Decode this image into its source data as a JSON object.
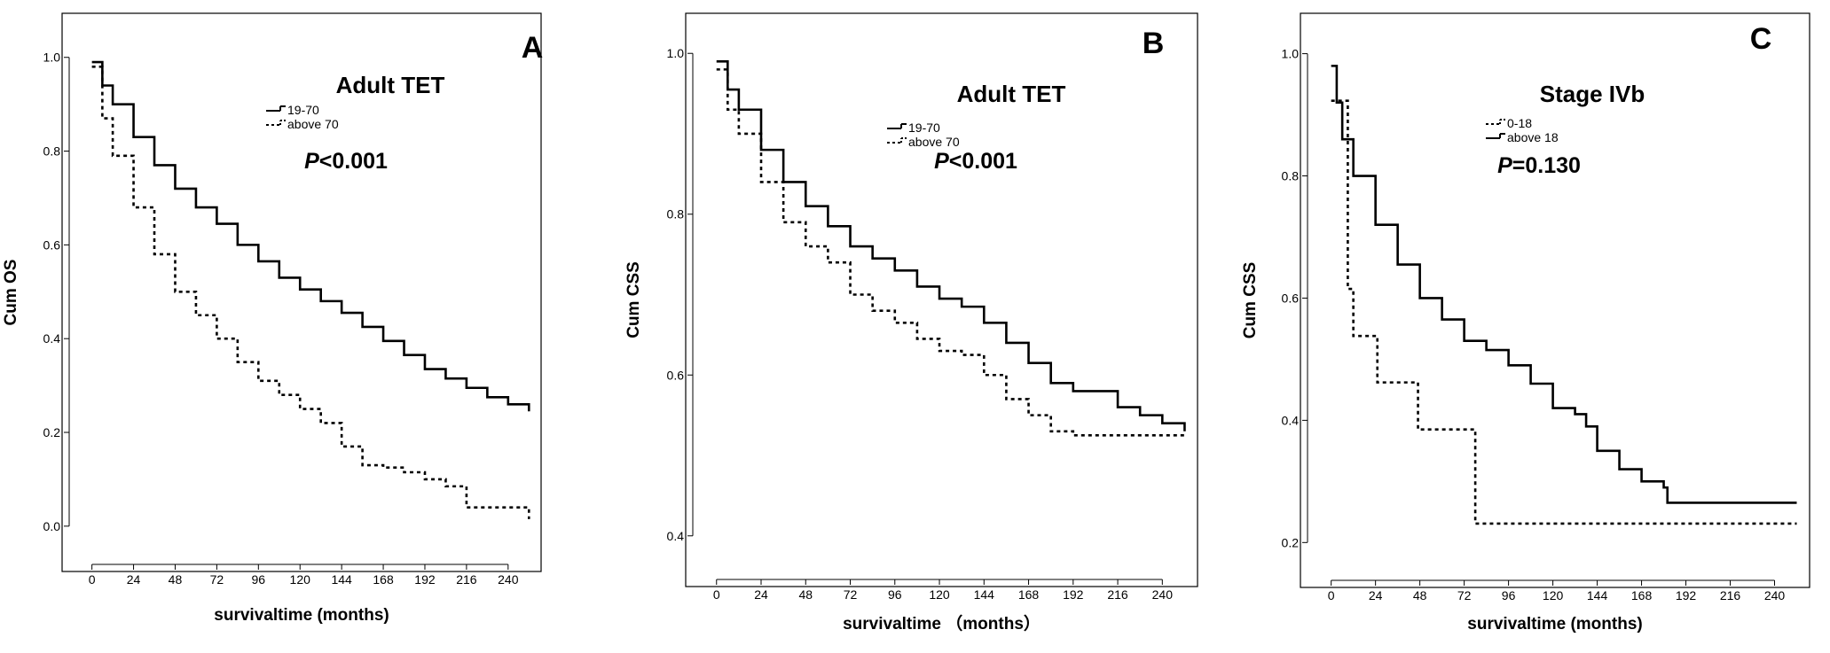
{
  "chart_data": [
    {
      "type": "line",
      "panel_letter": "A",
      "cohort_label": "Adult TET",
      "p_italic": "P",
      "p_rest": "<0.001",
      "xlabel": "survivaltime (months)",
      "ylabel": "Cum OS",
      "xlim": [
        -8,
        258
      ],
      "ylim": [
        -0.04,
        1.06
      ],
      "xticks": [
        0,
        24,
        48,
        72,
        96,
        120,
        144,
        168,
        192,
        216,
        240
      ],
      "yticks": [
        0.0,
        0.2,
        0.4,
        0.6,
        0.8,
        1.0
      ],
      "ytick_labels": [
        "0.0",
        "0.2",
        "0.4",
        "0.6",
        "0.8",
        "1.0"
      ],
      "legend_position": "upper-middle",
      "series": [
        {
          "name": "19-70",
          "dashed": false,
          "x": [
            0,
            6,
            12,
            24,
            36,
            48,
            60,
            72,
            84,
            96,
            108,
            120,
            132,
            144,
            156,
            168,
            180,
            192,
            204,
            216,
            228,
            240,
            252
          ],
          "y": [
            0.99,
            0.94,
            0.9,
            0.83,
            0.77,
            0.72,
            0.68,
            0.645,
            0.6,
            0.565,
            0.53,
            0.505,
            0.48,
            0.455,
            0.425,
            0.395,
            0.365,
            0.335,
            0.315,
            0.295,
            0.275,
            0.26,
            0.245
          ]
        },
        {
          "name": "above 70",
          "dashed": true,
          "x": [
            0,
            6,
            12,
            24,
            36,
            48,
            60,
            72,
            84,
            96,
            108,
            120,
            132,
            144,
            156,
            168,
            180,
            192,
            204,
            216,
            228,
            240,
            252
          ],
          "y": [
            0.98,
            0.87,
            0.79,
            0.68,
            0.58,
            0.5,
            0.45,
            0.4,
            0.35,
            0.31,
            0.28,
            0.25,
            0.22,
            0.17,
            0.13,
            0.125,
            0.115,
            0.1,
            0.085,
            0.04,
            0.04,
            0.04,
            0.015
          ]
        }
      ]
    },
    {
      "type": "line",
      "panel_letter": "B",
      "cohort_label": "Adult TET",
      "p_italic": "P",
      "p_rest": "<0.001",
      "xlabel": "survivaltime （months）",
      "ylabel": "Cum CSS",
      "xlim": [
        -8,
        258
      ],
      "ylim": [
        0.37,
        1.03
      ],
      "xticks": [
        0,
        24,
        48,
        72,
        96,
        120,
        144,
        168,
        192,
        216,
        240
      ],
      "yticks": [
        0.4,
        0.6,
        0.8,
        1.0
      ],
      "ytick_labels": [
        "0.4",
        "0.6",
        "0.8",
        "1.0"
      ],
      "legend_position": "upper-middle",
      "series": [
        {
          "name": "19-70",
          "dashed": false,
          "x": [
            0,
            6,
            12,
            24,
            36,
            48,
            60,
            72,
            84,
            96,
            108,
            120,
            132,
            144,
            156,
            168,
            180,
            192,
            204,
            216,
            228,
            240,
            252
          ],
          "y": [
            0.99,
            0.955,
            0.93,
            0.88,
            0.84,
            0.81,
            0.785,
            0.76,
            0.745,
            0.73,
            0.71,
            0.695,
            0.685,
            0.665,
            0.64,
            0.615,
            0.59,
            0.58,
            0.58,
            0.56,
            0.55,
            0.54,
            0.53
          ]
        },
        {
          "name": "above 70",
          "dashed": true,
          "x": [
            0,
            6,
            12,
            24,
            36,
            48,
            60,
            72,
            84,
            96,
            108,
            120,
            132,
            144,
            156,
            168,
            180,
            192,
            204,
            216,
            228,
            240,
            252
          ],
          "y": [
            0.98,
            0.93,
            0.9,
            0.84,
            0.79,
            0.76,
            0.74,
            0.7,
            0.68,
            0.665,
            0.645,
            0.63,
            0.625,
            0.6,
            0.57,
            0.55,
            0.53,
            0.525,
            0.525,
            0.525,
            0.525,
            0.525,
            0.525
          ]
        }
      ]
    },
    {
      "type": "line",
      "panel_letter": "C",
      "cohort_label": "Stage IVb",
      "p_italic": "P",
      "p_rest": "=0.130",
      "xlabel": "survivaltime (months)",
      "ylabel": "Cum CSS",
      "xlim": [
        -8,
        258
      ],
      "ylim": [
        0.17,
        1.04
      ],
      "xticks": [
        0,
        24,
        48,
        72,
        96,
        120,
        144,
        168,
        192,
        216,
        240
      ],
      "yticks": [
        0.2,
        0.4,
        0.6,
        0.8,
        1.0
      ],
      "ytick_labels": [
        "0.2",
        "0.4",
        "0.6",
        "0.8",
        "1.0"
      ],
      "legend_position": "upper-middle",
      "series": [
        {
          "name": "0-18",
          "dashed": true,
          "x": [
            0,
            3,
            6,
            9,
            12,
            24,
            25,
            36,
            45,
            47,
            60,
            76,
            78,
            252
          ],
          "y": [
            0.923,
            0.923,
            0.923,
            0.615,
            0.538,
            0.538,
            0.462,
            0.462,
            0.462,
            0.385,
            0.385,
            0.385,
            0.231,
            0.231
          ]
        },
        {
          "name": "above 18",
          "dashed": false,
          "x": [
            0,
            3,
            6,
            12,
            24,
            36,
            48,
            60,
            72,
            84,
            96,
            108,
            120,
            132,
            138,
            144,
            156,
            168,
            180,
            182,
            192,
            216,
            240,
            252
          ],
          "y": [
            0.98,
            0.92,
            0.86,
            0.8,
            0.72,
            0.655,
            0.6,
            0.565,
            0.53,
            0.515,
            0.49,
            0.46,
            0.42,
            0.41,
            0.39,
            0.35,
            0.32,
            0.3,
            0.29,
            0.265,
            0.265,
            0.265,
            0.265,
            0.265
          ]
        }
      ]
    }
  ]
}
